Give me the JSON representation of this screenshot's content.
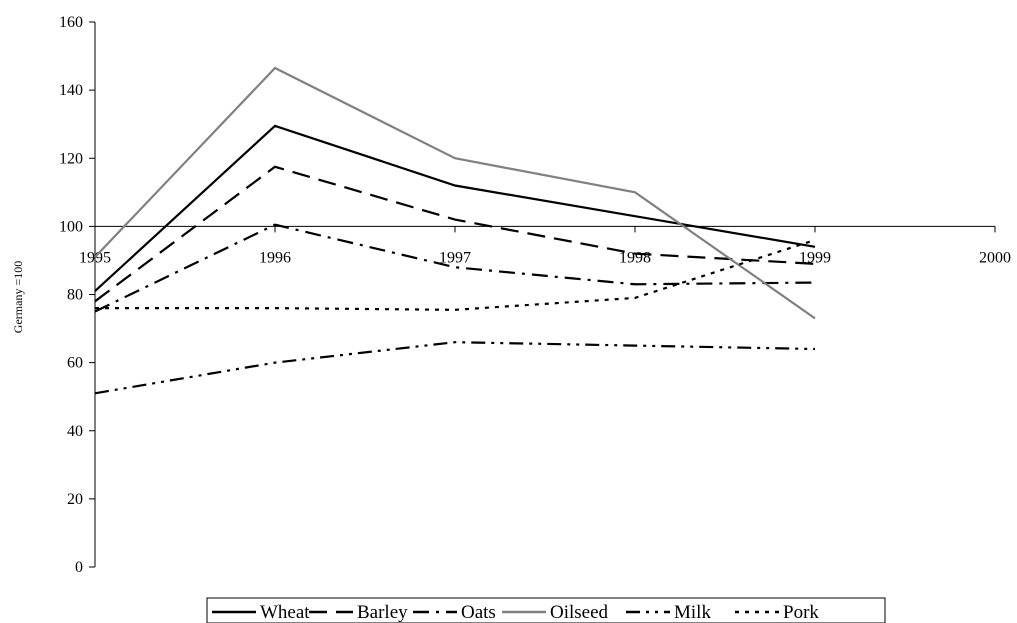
{
  "chart_data": {
    "type": "line",
    "title": "",
    "xlabel": "",
    "ylabel": "Germany =100",
    "x": [
      "1995",
      "1996",
      "1997",
      "1998",
      "1999"
    ],
    "x_ticks": [
      "1995",
      "1996",
      "1997",
      "1998",
      "1999",
      "2000"
    ],
    "y_ticks": [
      "0",
      "20",
      "40",
      "60",
      "80",
      "100",
      "120",
      "140",
      "160"
    ],
    "ylim": [
      0,
      160
    ],
    "x_axis_crosses_at": 100,
    "grid": false,
    "legend_position": "bottom",
    "series": [
      {
        "name": "Wheat",
        "values": [
          81,
          129.5,
          112,
          103,
          94
        ],
        "color": "#000000",
        "dash": "solid"
      },
      {
        "name": "Barley",
        "values": [
          78,
          117.5,
          102,
          92,
          89
        ],
        "color": "#000000",
        "dash": "long-dash"
      },
      {
        "name": "Oats",
        "values": [
          75,
          100.5,
          88,
          83,
          83.5
        ],
        "color": "#000000",
        "dash": "dash-dot"
      },
      {
        "name": "Oilseed",
        "values": [
          91,
          146.5,
          120,
          110,
          73
        ],
        "color": "#808080",
        "dash": "solid"
      },
      {
        "name": "Milk",
        "values": [
          51,
          60,
          66,
          65,
          64
        ],
        "color": "#000000",
        "dash": "dash-dot-dot"
      },
      {
        "name": "Pork",
        "values": [
          76,
          76,
          75.5,
          79,
          96
        ],
        "color": "#000000",
        "dash": "dotted"
      }
    ]
  }
}
